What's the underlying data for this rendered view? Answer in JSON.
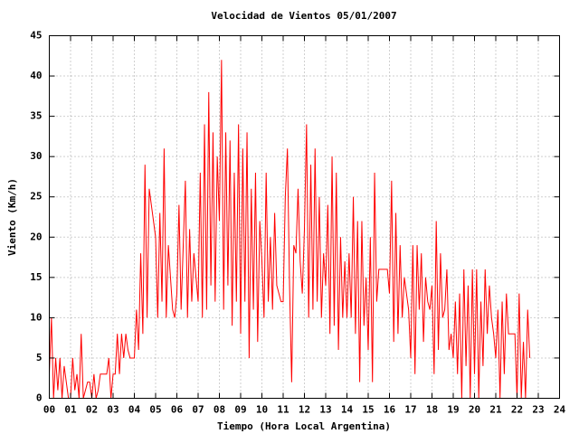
{
  "chart_data": {
    "type": "line",
    "title": "Velocidad de Vientos 05/01/2007",
    "xlabel": "Tiempo (Hora Local Argentina)",
    "ylabel": "Viento (Km/h)",
    "color": "#ff0000",
    "grid": true,
    "xlim": [
      0,
      24
    ],
    "ylim": [
      0,
      45
    ],
    "xticks": [
      {
        "value": 0,
        "label": "00"
      },
      {
        "value": 1,
        "label": "01"
      },
      {
        "value": 2,
        "label": "02"
      },
      {
        "value": 3,
        "label": "03"
      },
      {
        "value": 4,
        "label": "04"
      },
      {
        "value": 5,
        "label": "05"
      },
      {
        "value": 6,
        "label": "06"
      },
      {
        "value": 7,
        "label": "07"
      },
      {
        "value": 8,
        "label": "08"
      },
      {
        "value": 9,
        "label": "09"
      },
      10,
      11,
      12,
      13,
      14,
      15,
      16,
      17,
      18,
      19,
      20,
      21,
      22,
      23,
      24
    ],
    "yticks": [
      0,
      5,
      10,
      15,
      20,
      25,
      30,
      35,
      40,
      45
    ],
    "x": [
      0,
      0.1,
      0.2,
      0.3,
      0.4,
      0.5,
      0.6,
      0.7,
      0.8,
      0.9,
      1,
      1.1,
      1.2,
      1.3,
      1.4,
      1.5,
      1.6,
      1.7,
      1.8,
      1.9,
      2,
      2.1,
      2.2,
      2.3,
      2.4,
      2.5,
      2.6,
      2.7,
      2.8,
      2.9,
      3,
      3.1,
      3.2,
      3.3,
      3.4,
      3.5,
      3.6,
      3.7,
      3.8,
      3.9,
      4,
      4.1,
      4.2,
      4.3,
      4.4,
      4.5,
      4.6,
      4.7,
      4.8,
      4.9,
      5,
      5.1,
      5.2,
      5.3,
      5.4,
      5.5,
      5.6,
      5.7,
      5.8,
      5.9,
      6,
      6.1,
      6.2,
      6.3,
      6.4,
      6.5,
      6.6,
      6.7,
      6.8,
      6.9,
      7,
      7.1,
      7.2,
      7.3,
      7.4,
      7.5,
      7.6,
      7.7,
      7.8,
      7.9,
      8,
      8.1,
      8.2,
      8.3,
      8.4,
      8.5,
      8.6,
      8.7,
      8.8,
      8.9,
      9,
      9.1,
      9.2,
      9.3,
      9.4,
      9.5,
      9.6,
      9.7,
      9.8,
      9.9,
      10,
      10.1,
      10.2,
      10.3,
      10.4,
      10.5,
      10.6,
      10.7,
      10.8,
      10.9,
      11,
      11.1,
      11.2,
      11.3,
      11.4,
      11.5,
      11.6,
      11.7,
      11.8,
      11.9,
      12,
      12.1,
      12.2,
      12.3,
      12.4,
      12.5,
      12.6,
      12.7,
      12.8,
      12.9,
      13,
      13.1,
      13.2,
      13.3,
      13.4,
      13.5,
      13.6,
      13.7,
      13.8,
      13.9,
      14,
      14.1,
      14.2,
      14.3,
      14.4,
      14.5,
      14.6,
      14.7,
      14.8,
      14.9,
      15,
      15.1,
      15.2,
      15.3,
      15.4,
      15.5,
      15.6,
      15.7,
      15.8,
      15.9,
      16,
      16.1,
      16.2,
      16.3,
      16.4,
      16.5,
      16.6,
      16.7,
      16.8,
      16.9,
      17,
      17.1,
      17.2,
      17.3,
      17.4,
      17.5,
      17.6,
      17.7,
      17.8,
      17.9,
      18,
      18.1,
      18.2,
      18.3,
      18.4,
      18.5,
      18.6,
      18.7,
      18.8,
      18.9,
      19,
      19.1,
      19.2,
      19.3,
      19.4,
      19.5,
      19.6,
      19.7,
      19.8,
      19.9,
      20,
      20.1,
      20.2,
      20.3,
      20.4,
      20.5,
      20.6,
      20.7,
      20.8,
      20.9,
      21,
      21.1,
      21.2,
      21.3,
      21.4,
      21.5,
      21.6,
      21.7,
      21.8,
      21.9,
      22,
      22.1,
      22.2,
      22.3,
      22.4,
      22.5,
      22.6
    ],
    "values": [
      3,
      10,
      0,
      5,
      1,
      5,
      0,
      4,
      2,
      0,
      0,
      5,
      1,
      3,
      0,
      8,
      0,
      1,
      2,
      2,
      0,
      3,
      0,
      1,
      3,
      3,
      3,
      3,
      5,
      0,
      3,
      3,
      8,
      3,
      8,
      5,
      8,
      6,
      5,
      5,
      5,
      11,
      6,
      18,
      8,
      29,
      10,
      26,
      24,
      22,
      20,
      10,
      23,
      12,
      31,
      10,
      19,
      15,
      11,
      10,
      13,
      24,
      11,
      19,
      27,
      10,
      21,
      12,
      18,
      15,
      12,
      28,
      10,
      34,
      11,
      38,
      14,
      33,
      12,
      30,
      22,
      42,
      11,
      33,
      14,
      32,
      9,
      28,
      12,
      34,
      8,
      31,
      12,
      33,
      5,
      26,
      11,
      28,
      7,
      22,
      17,
      10,
      28,
      12,
      20,
      11,
      23,
      14,
      13,
      12,
      12,
      25,
      31,
      14,
      2,
      19,
      18,
      26,
      17,
      13,
      21,
      34,
      10,
      29,
      11,
      31,
      12,
      25,
      10,
      18,
      14,
      24,
      8,
      30,
      9,
      28,
      6,
      20,
      10,
      17,
      10,
      18,
      10,
      25,
      8,
      22,
      2,
      22,
      9,
      15,
      6,
      20,
      2,
      28,
      12,
      16,
      16,
      16,
      16,
      16,
      13,
      27,
      7,
      23,
      8,
      19,
      10,
      15,
      13,
      11,
      5,
      19,
      3,
      19,
      11,
      18,
      7,
      15,
      12,
      11,
      14,
      3,
      22,
      6,
      18,
      10,
      11,
      16,
      6,
      8,
      5,
      12,
      3,
      13,
      0,
      16,
      4,
      14,
      0,
      16,
      3,
      16,
      0,
      12,
      4,
      16,
      8,
      14,
      10,
      8,
      5,
      11,
      0,
      12,
      3,
      13,
      8,
      8,
      8,
      8,
      0,
      13,
      0,
      7,
      0,
      11,
      5
    ]
  }
}
